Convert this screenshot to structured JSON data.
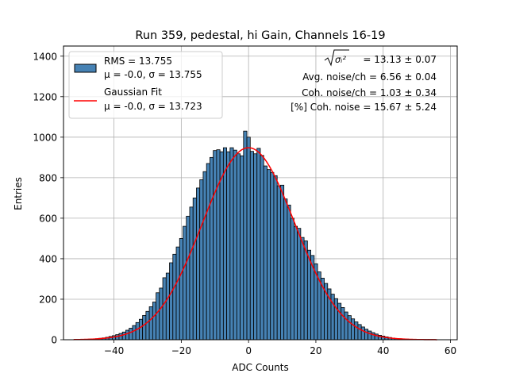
{
  "chart_data": {
    "type": "bar",
    "title": "Run 359, pedestal, hi Gain, Channels 16-19",
    "xlabel": "ADC Counts",
    "ylabel": "Entries",
    "xlim": [
      -55,
      62
    ],
    "ylim": [
      0,
      1450
    ],
    "xticks": [
      -40,
      -20,
      0,
      20,
      40,
      60
    ],
    "xtick_labels": [
      "−40",
      "−20",
      "0",
      "20",
      "40",
      "60"
    ],
    "yticks": [
      0,
      200,
      400,
      600,
      800,
      1000,
      1200,
      1400
    ],
    "grid": true,
    "bar_color": "#4682b4",
    "fit_color": "#ff0000",
    "hist_x": [
      -48,
      -47,
      -46,
      -45,
      -44,
      -43,
      -42,
      -41,
      -40,
      -39,
      -38,
      -37,
      -36,
      -35,
      -34,
      -33,
      -32,
      -31,
      -30,
      -29,
      -28,
      -27,
      -26,
      -25,
      -24,
      -23,
      -22,
      -21,
      -20,
      -19,
      -18,
      -17,
      -16,
      -15,
      -14,
      -13,
      -12,
      -11,
      -10,
      -9,
      -8,
      -7,
      -6,
      -5,
      -4,
      -3,
      -2,
      -1,
      0,
      1,
      2,
      3,
      4,
      5,
      6,
      7,
      8,
      9,
      10,
      11,
      12,
      13,
      14,
      15,
      16,
      17,
      18,
      19,
      20,
      21,
      22,
      23,
      24,
      25,
      26,
      27,
      28,
      29,
      30,
      31,
      32,
      33,
      34,
      35,
      36,
      37,
      38,
      39,
      40,
      41,
      42,
      43,
      44,
      45,
      46,
      47,
      48,
      49,
      50,
      51,
      52,
      53,
      54,
      55
    ],
    "hist_values": [
      2,
      3,
      4,
      5,
      7,
      9,
      12,
      16,
      20,
      25,
      31,
      38,
      47,
      57,
      70,
      85,
      101,
      120,
      140,
      163,
      186,
      232,
      255,
      306,
      329,
      380,
      422,
      458,
      500,
      560,
      610,
      655,
      700,
      749,
      790,
      830,
      870,
      900,
      934,
      938,
      928,
      948,
      928,
      948,
      936,
      918,
      908,
      1030,
      1000,
      930,
      918,
      945,
      910,
      858,
      840,
      826,
      810,
      760,
      763,
      695,
      665,
      600,
      560,
      550,
      505,
      488,
      442,
      416,
      375,
      335,
      304,
      278,
      251,
      225,
      203,
      180,
      159,
      137,
      119,
      103,
      88,
      75,
      63,
      52,
      43,
      35,
      28,
      22,
      18,
      14,
      11,
      8,
      6,
      5,
      4,
      3,
      2,
      2,
      1,
      1,
      1,
      1,
      1,
      1
    ],
    "fit_mu": -0.0,
    "fit_sigma": 13.723,
    "fit_amplitude": 948,
    "fit_x_range": [
      -52,
      56
    ],
    "legend": {
      "placement": "upper-left",
      "entries": [
        {
          "kind": "histogram",
          "line1": "RMS = 13.755",
          "line2": "μ = -0.0, σ = 13.755"
        },
        {
          "kind": "line",
          "line1": "Gaussian Fit",
          "line2": "μ = -0.0, σ = 13.723"
        }
      ]
    },
    "annotations": [
      {
        "kind": "sqrt",
        "radicand": "σᵢ²",
        "text": " = 13.13 ± 0.07"
      },
      {
        "text": "Avg. noise/ch = 6.56 ± 0.04"
      },
      {
        "text": "Coh. noise/ch = 1.03 ± 0.34"
      },
      {
        "text": "[%] Coh. noise = 15.67 ± 5.24"
      }
    ]
  }
}
